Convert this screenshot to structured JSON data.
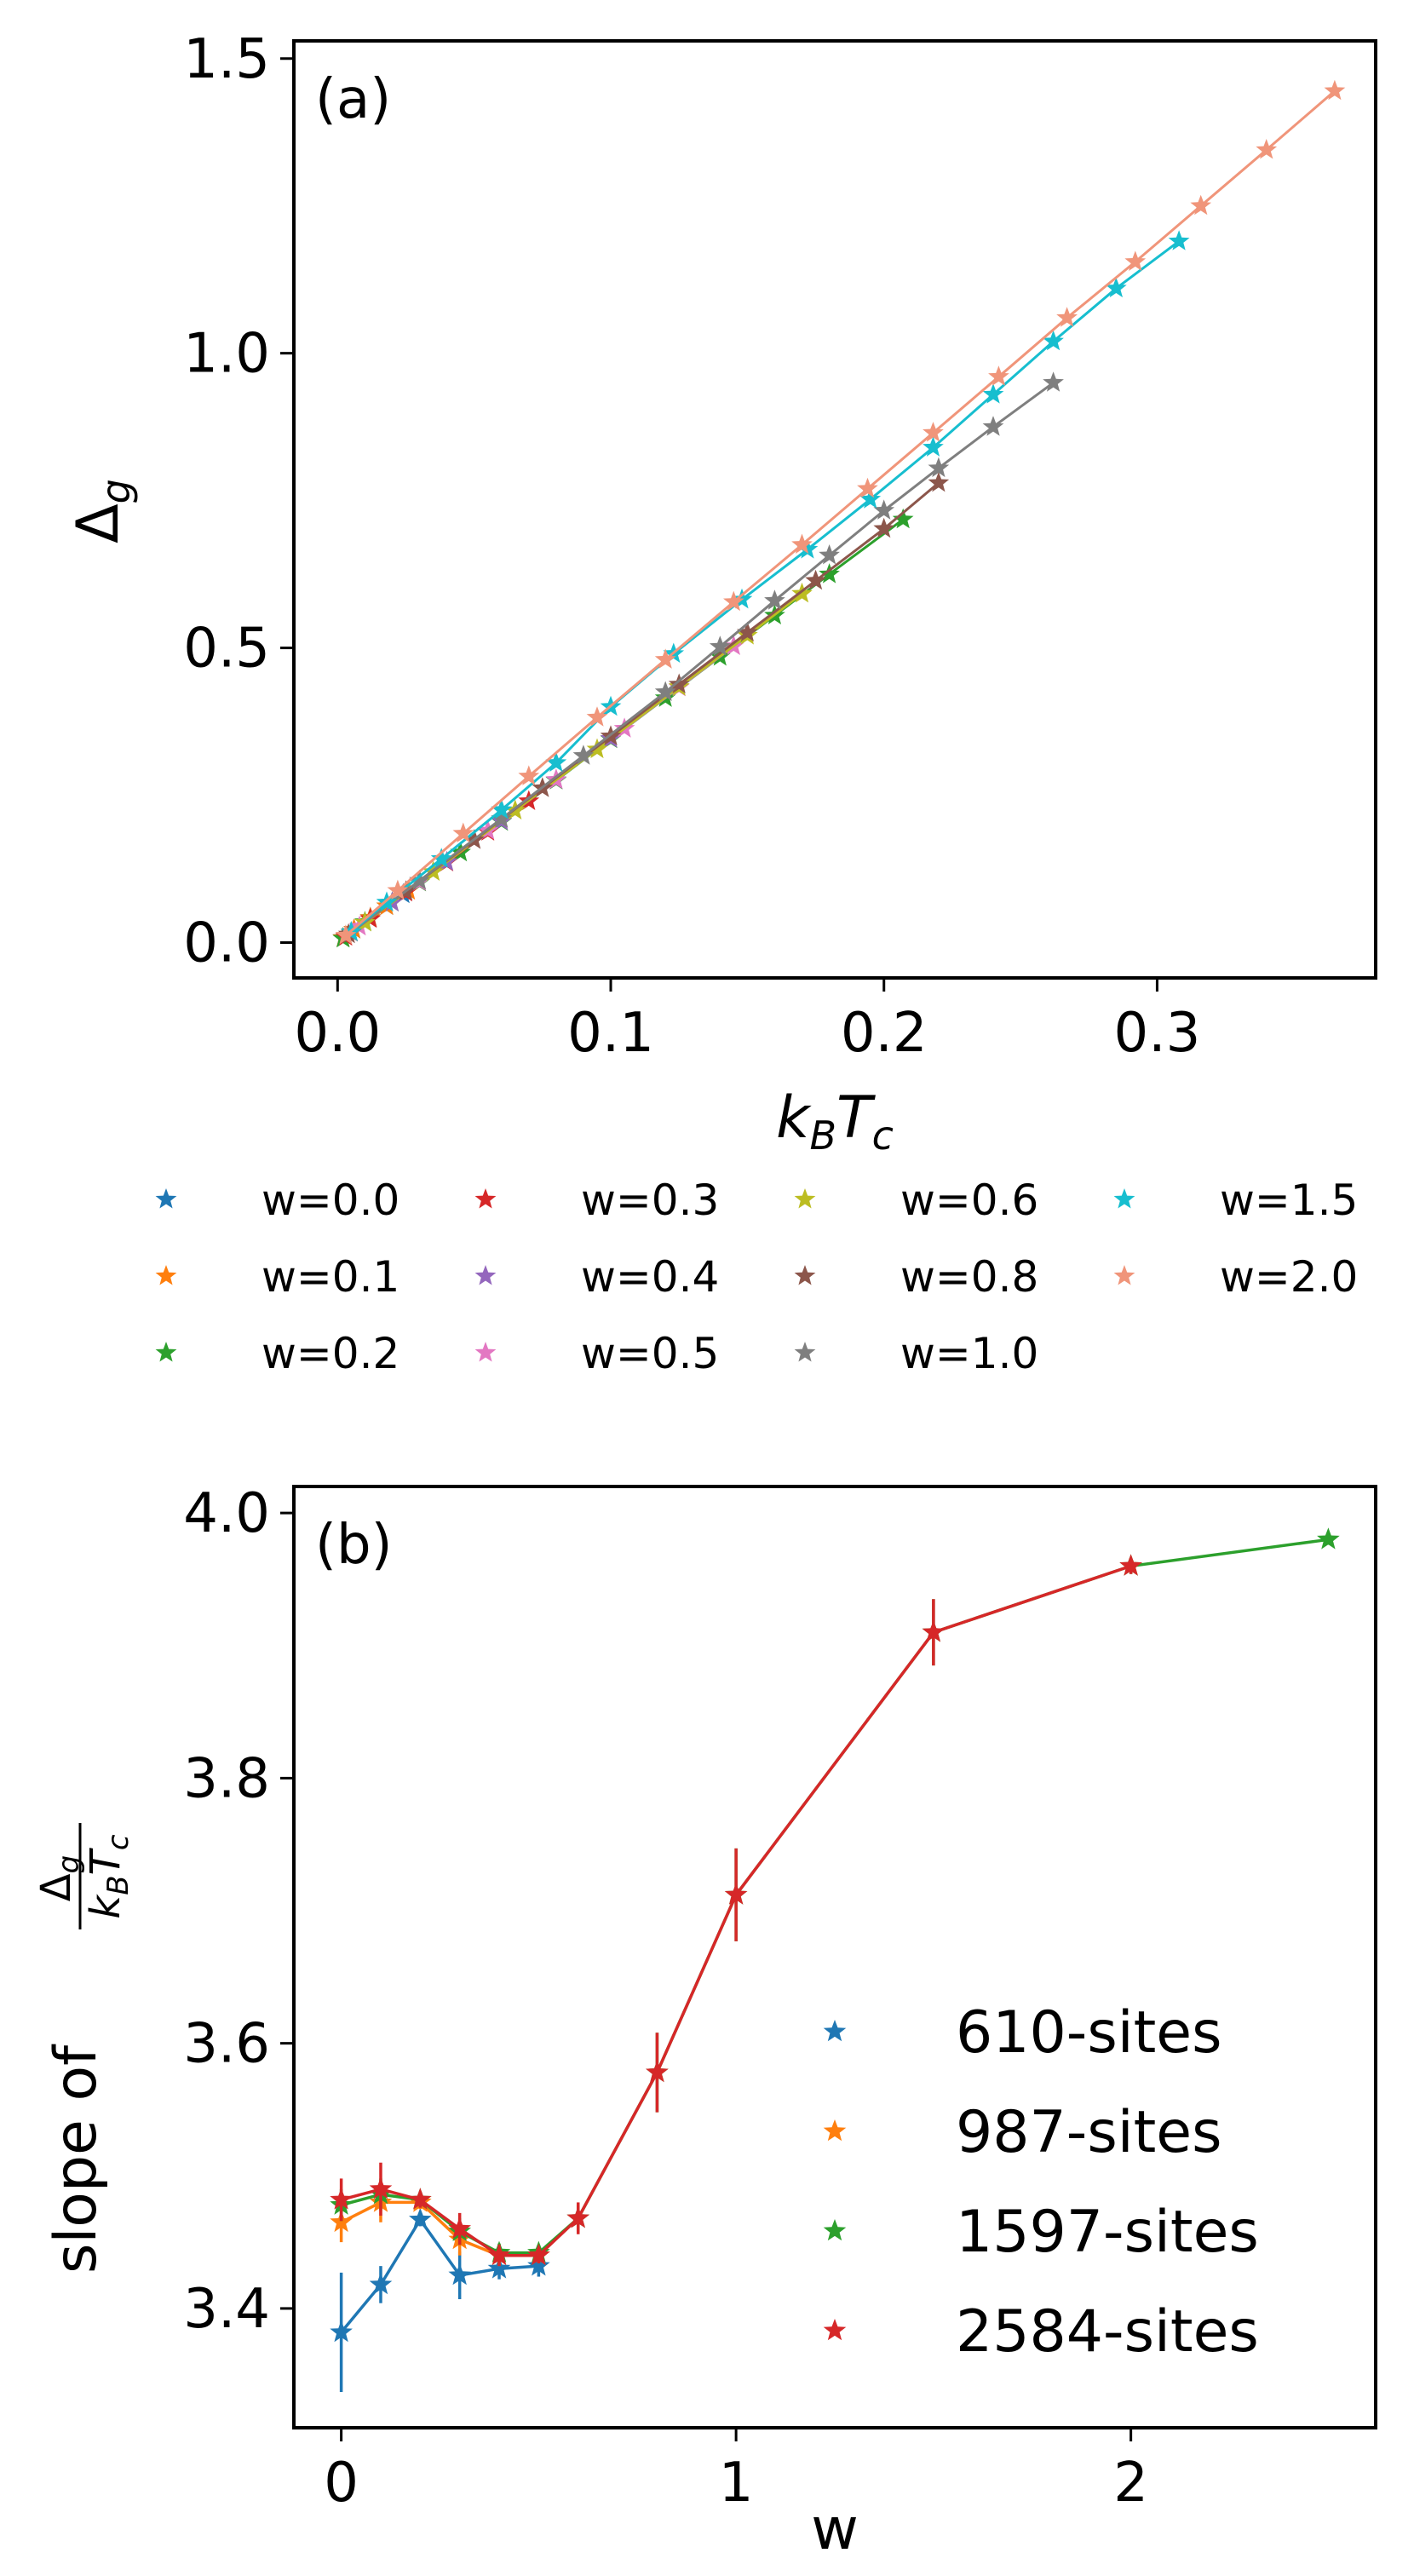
{
  "chart_data": [
    {
      "type": "line",
      "panel_label": "(a)",
      "xlabel_main": "k",
      "xlabel_sub1": "B",
      "xlabel_main2": "T",
      "xlabel_sub2": "c",
      "ylabel_main": "Δ",
      "ylabel_sub": "g",
      "xlim": [
        -0.016,
        0.38
      ],
      "ylim": [
        -0.06,
        1.53
      ],
      "xticks": [
        0.0,
        0.1,
        0.2,
        0.3
      ],
      "xtick_labels": [
        "0.0",
        "0.1",
        "0.2",
        "0.3"
      ],
      "yticks": [
        0.0,
        0.5,
        1.0,
        1.5
      ],
      "ytick_labels": [
        "0.0",
        "0.5",
        "1.0",
        "1.5"
      ],
      "legend_position": "below, 4 columns",
      "series": [
        {
          "name": "w=0.0",
          "color": "#1f77b4",
          "x": [
            0.002,
            0.006,
            0.012,
            0.018,
            0.024
          ],
          "y": [
            0.008,
            0.022,
            0.042,
            0.062,
            0.082
          ]
        },
        {
          "name": "w=0.1",
          "color": "#ff7f0e",
          "x": [
            0.002,
            0.006,
            0.012,
            0.018,
            0.026
          ],
          "y": [
            0.008,
            0.022,
            0.042,
            0.062,
            0.088
          ]
        },
        {
          "name": "w=0.2",
          "color": "#2ca02c",
          "x": [
            0.002,
            0.01,
            0.02,
            0.03,
            0.045,
            0.06,
            0.08,
            0.1,
            0.12,
            0.14,
            0.16,
            0.18,
            0.207
          ],
          "y": [
            0.007,
            0.035,
            0.068,
            0.102,
            0.153,
            0.205,
            0.275,
            0.345,
            0.415,
            0.485,
            0.555,
            0.625,
            0.718
          ]
        },
        {
          "name": "w=0.3",
          "color": "#d62728",
          "x": [
            0.003,
            0.012,
            0.025,
            0.04,
            0.055,
            0.07
          ],
          "y": [
            0.01,
            0.04,
            0.085,
            0.136,
            0.188,
            0.24
          ]
        },
        {
          "name": "w=0.4",
          "color": "#9467bd",
          "x": [
            0.005,
            0.02,
            0.04,
            0.06,
            0.08,
            0.1
          ],
          "y": [
            0.017,
            0.068,
            0.137,
            0.206,
            0.276,
            0.346
          ]
        },
        {
          "name": "w=0.5",
          "color": "#e377c2",
          "x": [
            0.008,
            0.03,
            0.055,
            0.08,
            0.105,
            0.125,
            0.145
          ],
          "y": [
            0.027,
            0.103,
            0.19,
            0.276,
            0.363,
            0.433,
            0.503
          ]
        },
        {
          "name": "w=0.6",
          "color": "#bcbd22",
          "x": [
            0.01,
            0.035,
            0.065,
            0.095,
            0.125,
            0.15,
            0.17
          ],
          "y": [
            0.034,
            0.12,
            0.224,
            0.328,
            0.434,
            0.521,
            0.592
          ]
        },
        {
          "name": "w=0.8",
          "color": "#8c564b",
          "x": [
            0.004,
            0.025,
            0.05,
            0.075,
            0.1,
            0.125,
            0.15,
            0.175,
            0.2,
            0.22
          ],
          "y": [
            0.014,
            0.087,
            0.174,
            0.262,
            0.35,
            0.438,
            0.526,
            0.614,
            0.702,
            0.78
          ]
        },
        {
          "name": "w=1.0",
          "color": "#7f7f7f",
          "x": [
            0.005,
            0.03,
            0.06,
            0.09,
            0.12,
            0.14,
            0.16,
            0.18,
            0.2,
            0.22,
            0.24,
            0.262
          ],
          "y": [
            0.017,
            0.105,
            0.21,
            0.317,
            0.425,
            0.502,
            0.58,
            0.657,
            0.733,
            0.805,
            0.875,
            0.95
          ]
        },
        {
          "name": "w=1.5",
          "color": "#17becf",
          "x": [
            0.005,
            0.018,
            0.038,
            0.06,
            0.08,
            0.1,
            0.123,
            0.148,
            0.172,
            0.195,
            0.218,
            0.24,
            0.262,
            0.285,
            0.308
          ],
          "y": [
            0.018,
            0.068,
            0.142,
            0.225,
            0.305,
            0.4,
            0.49,
            0.582,
            0.667,
            0.752,
            0.84,
            0.93,
            1.02,
            1.11,
            1.19
          ]
        },
        {
          "name": "w=2.0",
          "color": "#f0957a",
          "x": [
            0.003,
            0.022,
            0.046,
            0.07,
            0.095,
            0.12,
            0.145,
            0.17,
            0.194,
            0.218,
            0.242,
            0.267,
            0.292,
            0.316,
            0.34,
            0.365
          ],
          "y": [
            0.012,
            0.088,
            0.185,
            0.282,
            0.382,
            0.48,
            0.578,
            0.675,
            0.77,
            0.865,
            0.96,
            1.06,
            1.155,
            1.25,
            1.345,
            1.445
          ]
        }
      ]
    },
    {
      "type": "line",
      "panel_label": "(b)",
      "xlabel": "w",
      "ylabel_prefix": "slope of ",
      "ylabel_num_main": "Δ",
      "ylabel_num_sub": "g",
      "ylabel_den_main1": "k",
      "ylabel_den_sub1": "B",
      "ylabel_den_main2": "T",
      "ylabel_den_sub2": "c",
      "xlim": [
        -0.12,
        2.62
      ],
      "ylim": [
        3.31,
        4.02
      ],
      "xticks": [
        0,
        1,
        2
      ],
      "xtick_labels": [
        "0",
        "1",
        "2"
      ],
      "yticks": [
        3.4,
        3.6,
        3.8,
        4.0
      ],
      "ytick_labels": [
        "3.4",
        "3.6",
        "3.8",
        "4.0"
      ],
      "legend_position": "lower right",
      "series": [
        {
          "name": "610-sites",
          "color": "#1f77b4",
          "x": [
            0.0,
            0.1,
            0.2,
            0.3,
            0.4,
            0.5
          ],
          "y": [
            3.382,
            3.418,
            3.467,
            3.425,
            3.43,
            3.432
          ],
          "err": [
            0.045,
            0.014,
            0.005,
            0.018,
            0.008,
            0.008
          ]
        },
        {
          "name": "987-sites",
          "color": "#ff7f0e",
          "x": [
            0.0,
            0.1,
            0.2,
            0.3,
            0.4,
            0.5
          ],
          "y": [
            3.465,
            3.48,
            3.48,
            3.452,
            3.44,
            3.44
          ],
          "err": [
            0.015,
            0.015,
            0.005,
            0.012,
            0.008,
            0.006
          ]
        },
        {
          "name": "1597-sites",
          "color": "#2ca02c",
          "x": [
            0.0,
            0.1,
            0.2,
            0.3,
            0.4,
            0.5,
            0.6,
            0.8,
            1.0,
            1.5,
            2.0,
            2.5
          ],
          "y": [
            3.478,
            3.486,
            3.482,
            3.458,
            3.442,
            3.442,
            3.468,
            3.578,
            3.712,
            3.91,
            3.96,
            3.98
          ],
          "err": [
            0.012,
            0.012,
            0.005,
            0.01,
            0.007,
            0.006,
            0.01,
            0.03,
            0.035,
            0.025,
            0.006,
            0.004
          ]
        },
        {
          "name": "2584-sites",
          "color": "#d62728",
          "x": [
            0.0,
            0.1,
            0.2,
            0.3,
            0.4,
            0.5,
            0.6,
            0.8,
            1.0,
            1.5,
            2.0
          ],
          "y": [
            3.482,
            3.49,
            3.482,
            3.46,
            3.44,
            3.44,
            3.468,
            3.578,
            3.712,
            3.91,
            3.96
          ],
          "err": [
            0.016,
            0.02,
            0.006,
            0.012,
            0.008,
            0.006,
            0.012,
            0.03,
            0.035,
            0.025,
            0.006
          ]
        }
      ]
    }
  ]
}
